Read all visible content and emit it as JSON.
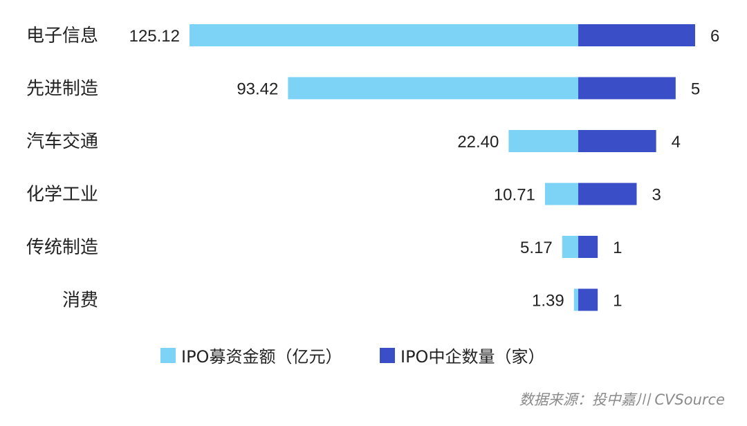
{
  "chart_data": {
    "type": "bar",
    "orientation": "horizontal-diverging",
    "categories": [
      "电子信息",
      "先进制造",
      "汽车交通",
      "化学工业",
      "传统制造",
      "消费"
    ],
    "series": [
      {
        "name": "IPO募资金额（亿元）",
        "values": [
          125.12,
          93.42,
          22.4,
          10.71,
          5.17,
          1.39
        ],
        "labels": [
          "125.12",
          "93.42",
          "22.40",
          "10.71",
          "5.17",
          "1.39"
        ],
        "color": "#7dd3f5",
        "direction": "left"
      },
      {
        "name": "IPO中企数量（家）",
        "values": [
          6,
          5,
          4,
          3,
          1,
          1
        ],
        "labels": [
          "6",
          "5",
          "4",
          "3",
          "1",
          "1"
        ],
        "color": "#3a4fc7",
        "direction": "right"
      }
    ],
    "legend_position": "bottom",
    "grid": false
  },
  "source": "数据来源：投中嘉川 CVSource"
}
